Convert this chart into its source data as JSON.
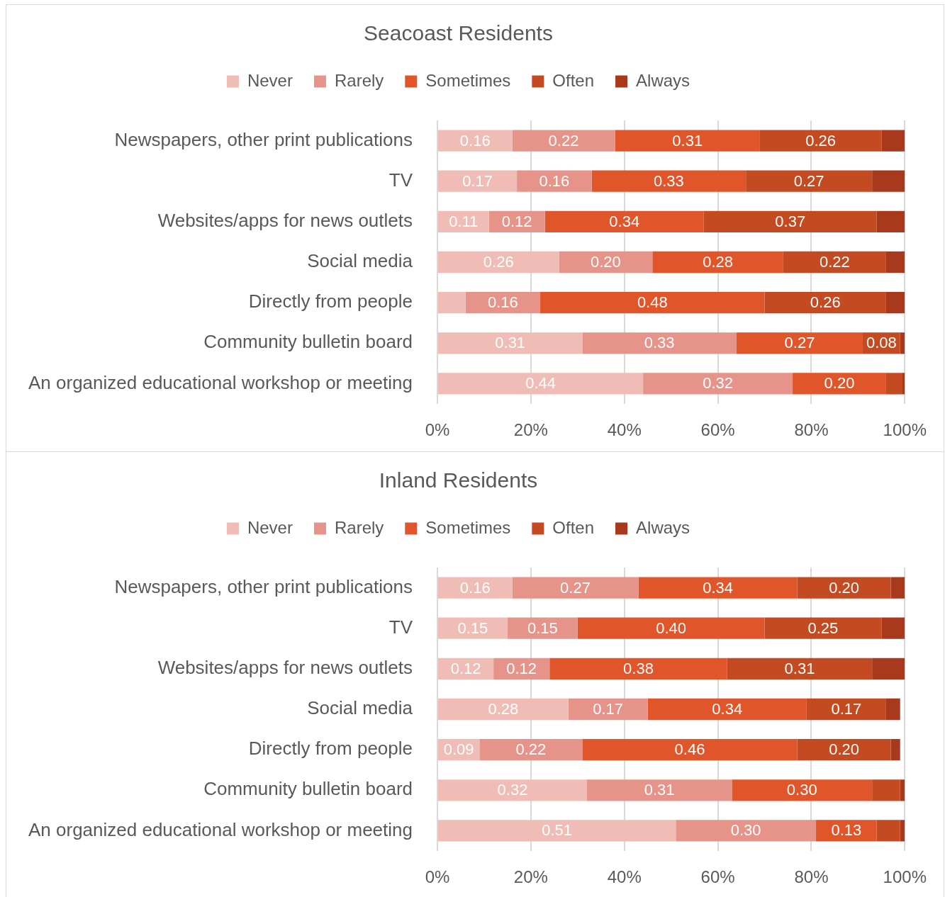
{
  "chart_data": [
    {
      "type": "bar",
      "orientation": "horizontal",
      "stacked": true,
      "title": "Seacoast Residents",
      "legend": "top",
      "grid": "x",
      "categories": [
        "Newspapers, other print publications",
        "TV",
        "Websites/apps for news outlets",
        "Social media",
        "Directly from people",
        "Community bulletin board",
        "An organized educational workshop or meeting"
      ],
      "xlim": [
        0,
        1
      ],
      "xticks": [
        {
          "value": 0,
          "label": "0%"
        },
        {
          "value": 0.2,
          "label": "20%"
        },
        {
          "value": 0.4,
          "label": "40%"
        },
        {
          "value": 0.6,
          "label": "60%"
        },
        {
          "value": 0.8,
          "label": "80%"
        },
        {
          "value": 1,
          "label": "100%"
        }
      ],
      "series": [
        {
          "name": "Never",
          "color": "#efbcb6",
          "values": [
            0.16,
            0.17,
            0.11,
            0.26,
            0.06,
            0.31,
            0.44
          ],
          "value_labels": [
            "0.16",
            "0.17",
            "0.11",
            "0.26",
            null,
            "0.31",
            "0.44"
          ]
        },
        {
          "name": "Rarely",
          "color": "#e69489",
          "values": [
            0.22,
            0.16,
            0.12,
            0.2,
            0.16,
            0.33,
            0.32
          ],
          "value_labels": [
            "0.22",
            "0.16",
            "0.12",
            "0.20",
            "0.16",
            "0.33",
            "0.32"
          ]
        },
        {
          "name": "Sometimes",
          "color": "#e05529",
          "values": [
            0.31,
            0.33,
            0.34,
            0.28,
            0.48,
            0.27,
            0.2
          ],
          "value_labels": [
            "0.31",
            "0.33",
            "0.34",
            "0.28",
            "0.48",
            "0.27",
            "0.20"
          ]
        },
        {
          "name": "Often",
          "color": "#c44a22",
          "values": [
            0.26,
            0.27,
            0.37,
            0.22,
            0.26,
            0.08,
            0.035
          ],
          "value_labels": [
            "0.26",
            "0.27",
            "0.37",
            "0.22",
            "0.26",
            "0.08",
            null
          ]
        },
        {
          "name": "Always",
          "color": "#a8391c",
          "values": [
            0.05,
            0.07,
            0.06,
            0.04,
            0.04,
            0.01,
            0.005
          ]
        }
      ]
    },
    {
      "type": "bar",
      "orientation": "horizontal",
      "stacked": true,
      "title": "Inland Residents",
      "legend": "top",
      "grid": "x",
      "categories": [
        "Newspapers, other print publications",
        "TV",
        "Websites/apps for news outlets",
        "Social media",
        "Directly from people",
        "Community bulletin board",
        "An organized educational workshop or meeting"
      ],
      "xlim": [
        0,
        1
      ],
      "xticks": [
        {
          "value": 0,
          "label": "0%"
        },
        {
          "value": 0.2,
          "label": "20%"
        },
        {
          "value": 0.4,
          "label": "40%"
        },
        {
          "value": 0.6,
          "label": "60%"
        },
        {
          "value": 0.8,
          "label": "80%"
        },
        {
          "value": 1,
          "label": "100%"
        }
      ],
      "series": [
        {
          "name": "Never",
          "color": "#efbcb6",
          "values": [
            0.16,
            0.15,
            0.12,
            0.28,
            0.09,
            0.32,
            0.51
          ],
          "value_labels": [
            "0.16",
            "0.15",
            "0.12",
            "0.28",
            "0.09",
            "0.32",
            "0.51"
          ]
        },
        {
          "name": "Rarely",
          "color": "#e69489",
          "values": [
            0.27,
            0.15,
            0.12,
            0.17,
            0.22,
            0.31,
            0.3
          ],
          "value_labels": [
            "0.27",
            "0.15",
            "0.12",
            "0.17",
            "0.22",
            "0.31",
            "0.30"
          ]
        },
        {
          "name": "Sometimes",
          "color": "#e05529",
          "values": [
            0.34,
            0.4,
            0.38,
            0.34,
            0.46,
            0.3,
            0.13
          ],
          "value_labels": [
            "0.34",
            "0.40",
            "0.38",
            "0.34",
            "0.46",
            "0.30",
            "0.13"
          ]
        },
        {
          "name": "Often",
          "color": "#c44a22",
          "values": [
            0.2,
            0.25,
            0.31,
            0.17,
            0.2,
            0.06,
            0.05
          ],
          "value_labels": [
            "0.20",
            "0.25",
            "0.31",
            "0.17",
            "0.20",
            null,
            null
          ]
        },
        {
          "name": "Always",
          "color": "#a8391c",
          "values": [
            0.03,
            0.05,
            0.07,
            0.03,
            0.02,
            0.01,
            0.01
          ]
        }
      ]
    }
  ]
}
